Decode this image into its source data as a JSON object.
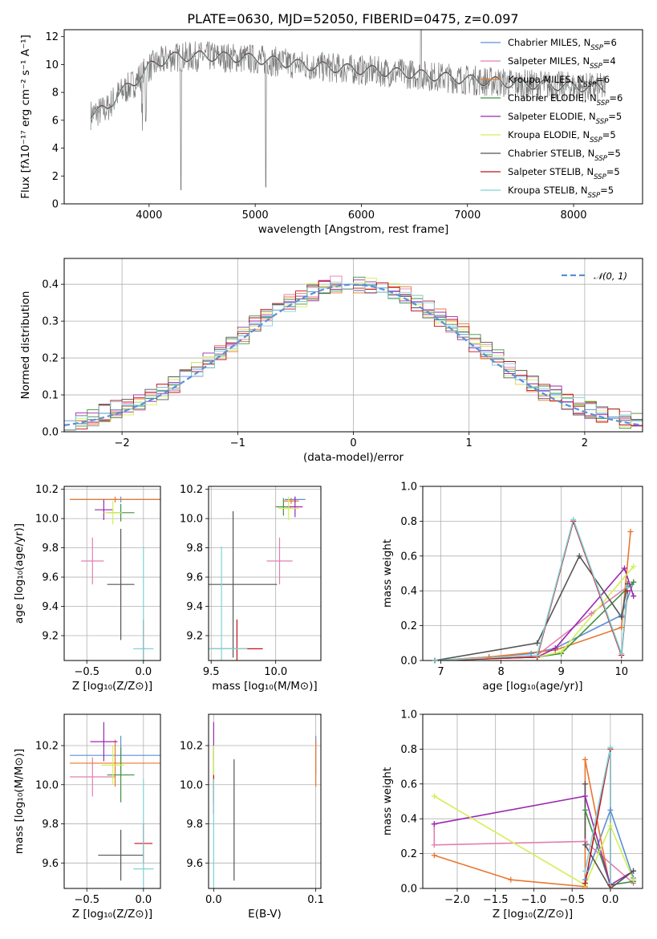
{
  "colors": {
    "Chabrier MILES": "#5b8fd6",
    "Salpeter MILES": "#e27fb0",
    "Kroupa MILES": "#e8772e",
    "Chabrier ELODIE": "#3e9240",
    "Salpeter ELODIE": "#9b27ae",
    "Kroupa ELODIE": "#d4ef55",
    "Chabrier STELIB": "#555555",
    "Salpeter STELIB": "#c0111d",
    "Kroupa STELIB": "#7fd3d8"
  },
  "chart_data": [
    {
      "id": "spectrum",
      "type": "line",
      "title": "PLATE=0630, MJD=52050, FIBERID=0475, z=0.097",
      "xlabel": "wavelength [Angstrom, rest frame]",
      "ylabel": "Flux [fλ10⁻¹⁷ erg cm⁻² s⁻¹ A⁻¹]",
      "xlim": [
        3200,
        8650
      ],
      "ylim": [
        0,
        12.5
      ],
      "xticks": [
        "4000",
        "5000",
        "6000",
        "7000",
        "8000"
      ],
      "yticks": [
        "0",
        "2",
        "4",
        "6",
        "8",
        "10",
        "12"
      ],
      "legend_position": "top-right",
      "legend": [
        {
          "base": "Chabrier MILES, N",
          "sub": "SSP",
          "tail": "=6"
        },
        {
          "base": "Salpeter MILES, N",
          "sub": "SSP",
          "tail": "=4"
        },
        {
          "base": "Kroupa MILES, N",
          "sub": "SSP",
          "tail": "=6"
        },
        {
          "base": "Chabrier ELODIE, N",
          "sub": "SSP",
          "tail": "=6"
        },
        {
          "base": "Salpeter ELODIE, N",
          "sub": "SSP",
          "tail": "=5"
        },
        {
          "base": "Kroupa ELODIE, N",
          "sub": "SSP",
          "tail": "=5"
        },
        {
          "base": "Chabrier STELIB, N",
          "sub": "SSP",
          "tail": "=5"
        },
        {
          "base": "Salpeter STELIB, N",
          "sub": "SSP",
          "tail": "=5"
        },
        {
          "base": "Kroupa STELIB, N",
          "sub": "SSP",
          "tail": "=5"
        }
      ],
      "continuum": [
        [
          3450,
          6.4
        ],
        [
          3600,
          6.8
        ],
        [
          3700,
          7.8
        ],
        [
          3850,
          8.6
        ],
        [
          4000,
          9.8
        ],
        [
          4200,
          10.5
        ],
        [
          4500,
          10.6
        ],
        [
          5000,
          10.4
        ],
        [
          5500,
          9.9
        ],
        [
          6000,
          9.6
        ],
        [
          6500,
          9.3
        ],
        [
          7000,
          8.9
        ],
        [
          7500,
          8.6
        ],
        [
          8000,
          8.4
        ],
        [
          8300,
          8.3
        ]
      ]
    },
    {
      "id": "residuals",
      "type": "histogram",
      "xlabel": "(data-model)/error",
      "ylabel": "Normed distribution",
      "xlim": [
        -2.5,
        2.5
      ],
      "ylim": [
        0,
        0.47
      ],
      "xticks": [
        "−2",
        "−1",
        "0",
        "1",
        "2"
      ],
      "yticks": [
        "0.0",
        "0.1",
        "0.2",
        "0.3",
        "0.4"
      ],
      "bins": 50,
      "legend": "𝒩(0, 1)",
      "series": [
        {
          "name": "Chabrier MILES",
          "values": [
            0.03,
            0.03,
            0.04,
            0.05,
            0.06,
            0.07,
            0.08,
            0.09,
            0.11,
            0.13,
            0.15,
            0.17,
            0.19,
            0.21,
            0.24,
            0.26,
            0.29,
            0.31,
            0.33,
            0.35,
            0.36,
            0.38,
            0.39,
            0.4,
            0.4,
            0.4,
            0.4,
            0.39,
            0.38,
            0.37,
            0.35,
            0.33,
            0.31,
            0.29,
            0.27,
            0.24,
            0.22,
            0.2,
            0.17,
            0.15,
            0.13,
            0.11,
            0.1,
            0.08,
            0.07,
            0.06,
            0.05,
            0.04,
            0.03,
            0.03
          ]
        }
      ]
    },
    {
      "id": "age-vs-Z",
      "type": "errorbar",
      "xlabel": "Z [log₁₀(Z/Z⊙)]",
      "ylabel": "age  [log₁₀(age/yr)]",
      "xlim": [
        -0.7,
        0.15
      ],
      "ylim": [
        9.03,
        10.22
      ],
      "xticks": [
        "−0.5",
        "0.0"
      ],
      "yticks": [
        "9.2",
        "9.4",
        "9.6",
        "9.8",
        "10.0",
        "10.2"
      ],
      "points": [
        {
          "model": "Chabrier MILES",
          "x": -0.2,
          "xerr": 0.45,
          "y": 10.13,
          "yerr": 0.02
        },
        {
          "model": "Salpeter MILES",
          "x": -0.45,
          "xerr": 0.1,
          "y": 9.71,
          "yerr": 0.16
        },
        {
          "model": "Kroupa MILES",
          "x": -0.25,
          "xerr": 0.4,
          "y": 10.13,
          "yerr": 0.02
        },
        {
          "model": "Chabrier ELODIE",
          "x": -0.2,
          "xerr": 0.12,
          "y": 10.04,
          "yerr": 0.06
        },
        {
          "model": "Salpeter ELODIE",
          "x": -0.35,
          "xerr": 0.08,
          "y": 10.06,
          "yerr": 0.07
        },
        {
          "model": "Kroupa ELODIE",
          "x": -0.27,
          "xerr": 0.08,
          "y": 10.04,
          "yerr": 0.08
        },
        {
          "model": "Chabrier STELIB",
          "x": -0.2,
          "xerr": 0.12,
          "y": 9.55,
          "yerr": 0.38
        },
        {
          "model": "Salpeter STELIB",
          "x": 0.0,
          "xerr": 0.02,
          "y": 9.11,
          "yerr": 0.2
        },
        {
          "model": "Kroupa STELIB",
          "x": 0.0,
          "xerr": 0.09,
          "y": 9.11,
          "yerr": 0.7
        }
      ]
    },
    {
      "id": "age-vs-mass",
      "type": "errorbar",
      "xlabel": "mass [log₁₀(M/M⊙)]",
      "ylabel": "",
      "xlim": [
        9.48,
        10.35
      ],
      "ylim": [
        9.03,
        10.22
      ],
      "xticks": [
        "9.5",
        "10.0"
      ],
      "yticks": [
        "9.2",
        "9.4",
        "9.6",
        "9.8",
        "10.0",
        "10.2"
      ],
      "points": [
        {
          "model": "Chabrier MILES",
          "x": 10.15,
          "xerr": 0.08,
          "y": 10.13,
          "yerr": 0.02
        },
        {
          "model": "Salpeter MILES",
          "x": 10.03,
          "xerr": 0.1,
          "y": 9.71,
          "yerr": 0.16
        },
        {
          "model": "Kroupa MILES",
          "x": 10.12,
          "xerr": 0.06,
          "y": 10.12,
          "yerr": 0.02
        },
        {
          "model": "Chabrier ELODIE",
          "x": 10.06,
          "xerr": 0.06,
          "y": 10.08,
          "yerr": 0.06
        },
        {
          "model": "Salpeter ELODIE",
          "x": 10.15,
          "xerr": 0.06,
          "y": 10.08,
          "yerr": 0.07
        },
        {
          "model": "Kroupa ELODIE",
          "x": 10.1,
          "xerr": 0.08,
          "y": 10.07,
          "yerr": 0.08
        },
        {
          "model": "Chabrier STELIB",
          "x": 9.67,
          "xerr": 0.34,
          "y": 9.55,
          "yerr": 0.5
        },
        {
          "model": "Salpeter STELIB",
          "x": 9.7,
          "xerr": 0.2,
          "y": 9.11,
          "yerr": 0.2
        },
        {
          "model": "Kroupa STELIB",
          "x": 9.58,
          "xerr": 0.2,
          "y": 9.11,
          "yerr": 0.7
        }
      ]
    },
    {
      "id": "weight-vs-age",
      "type": "line",
      "xlabel": "age  [log₁₀(age/yr)]",
      "ylabel": "mass weight",
      "xlim": [
        6.7,
        10.35
      ],
      "ylim": [
        0,
        1.0
      ],
      "xticks": [
        "7",
        "8",
        "9",
        "10"
      ],
      "yticks": [
        "0.0",
        "0.2",
        "0.4",
        "0.6",
        "0.8",
        "1.0"
      ],
      "series": [
        {
          "name": "Chabrier MILES",
          "x": [
            6.9,
            7.8,
            8.5,
            8.9,
            10.0,
            10.2
          ],
          "y": [
            0.0,
            0.02,
            0.04,
            0.07,
            0.26,
            0.45
          ]
        },
        {
          "name": "Salpeter MILES",
          "x": [
            6.9,
            8.6,
            9.5,
            10.2
          ],
          "y": [
            0.0,
            0.03,
            0.27,
            0.45
          ]
        },
        {
          "name": "Kroupa MILES",
          "x": [
            6.9,
            7.8,
            8.9,
            10.0,
            10.15
          ],
          "y": [
            0.0,
            0.02,
            0.06,
            0.19,
            0.74
          ]
        },
        {
          "name": "Chabrier ELODIE",
          "x": [
            6.9,
            8.6,
            9.0,
            10.2
          ],
          "y": [
            0.0,
            0.02,
            0.04,
            0.45
          ]
        },
        {
          "name": "Salpeter ELODIE",
          "x": [
            6.9,
            8.6,
            8.9,
            10.05,
            10.2
          ],
          "y": [
            0.0,
            0.02,
            0.07,
            0.53,
            0.37
          ]
        },
        {
          "name": "Kroupa ELODIE",
          "x": [
            6.9,
            8.6,
            9.0,
            10.2
          ],
          "y": [
            0.0,
            0.02,
            0.05,
            0.54
          ]
        },
        {
          "name": "Chabrier STELIB",
          "x": [
            6.9,
            8.6,
            9.3,
            10.0,
            10.1
          ],
          "y": [
            0.0,
            0.1,
            0.6,
            0.25,
            0.44
          ]
        },
        {
          "name": "Salpeter STELIB",
          "x": [
            6.9,
            8.6,
            9.2,
            10.0,
            10.1
          ],
          "y": [
            0.0,
            0.02,
            0.8,
            0.03,
            0.4
          ]
        },
        {
          "name": "Kroupa STELIB",
          "x": [
            6.9,
            8.6,
            9.2,
            10.0,
            10.1
          ],
          "y": [
            0.0,
            0.03,
            0.81,
            0.04,
            0.42
          ]
        }
      ]
    },
    {
      "id": "mass-vs-Z",
      "type": "errorbar",
      "xlabel": "Z [log₁₀(Z/Z⊙)]",
      "ylabel": "mass [log₁₀(M/M⊙)]",
      "xlim": [
        -0.7,
        0.15
      ],
      "ylim": [
        9.47,
        10.36
      ],
      "xticks": [
        "−0.5",
        "0.0"
      ],
      "yticks": [
        "9.6",
        "9.8",
        "10.0",
        "10.2"
      ],
      "points": [
        {
          "model": "Chabrier MILES",
          "x": -0.2,
          "xerr": 0.45,
          "y": 10.15,
          "yerr": 0.1
        },
        {
          "model": "Salpeter MILES",
          "x": -0.45,
          "xerr": 0.2,
          "y": 10.04,
          "yerr": 0.1
        },
        {
          "model": "Kroupa MILES",
          "x": -0.25,
          "xerr": 0.4,
          "y": 10.11,
          "yerr": 0.12
        },
        {
          "model": "Chabrier ELODIE",
          "x": -0.2,
          "xerr": 0.12,
          "y": 10.05,
          "yerr": 0.14
        },
        {
          "model": "Salpeter ELODIE",
          "x": -0.35,
          "xerr": 0.12,
          "y": 10.22,
          "yerr": 0.1
        },
        {
          "model": "Kroupa ELODIE",
          "x": -0.27,
          "xerr": 0.1,
          "y": 10.1,
          "yerr": 0.1
        },
        {
          "model": "Chabrier STELIB",
          "x": -0.2,
          "xerr": 0.2,
          "y": 9.64,
          "yerr": 0.13
        },
        {
          "model": "Salpeter STELIB",
          "x": 0.0,
          "xerr": 0.08,
          "y": 9.7,
          "yerr": 0.1
        },
        {
          "model": "Kroupa STELIB",
          "x": 0.0,
          "xerr": 0.09,
          "y": 9.57,
          "yerr": 0.46
        }
      ]
    },
    {
      "id": "mass-vs-ebv",
      "type": "errorbar",
      "xlabel": "E(B-V)",
      "ylabel": "",
      "xlim": [
        -0.005,
        0.105
      ],
      "ylim": [
        9.47,
        10.36
      ],
      "xticks": [
        "0.0",
        "0.1"
      ],
      "yticks": [
        "9.6",
        "9.8",
        "10.0",
        "10.2"
      ],
      "points": [
        {
          "model": "Chabrier MILES",
          "x": 0.1,
          "xerr": 0,
          "y": 10.15,
          "yerr": 0.1
        },
        {
          "model": "Salpeter MILES",
          "x": 0.0,
          "xerr": 0,
          "y": 10.04,
          "yerr": 0.1
        },
        {
          "model": "Kroupa MILES",
          "x": 0.1,
          "xerr": 0,
          "y": 10.11,
          "yerr": 0.12
        },
        {
          "model": "Chabrier ELODIE",
          "x": 0.0,
          "xerr": 0,
          "y": 10.05,
          "yerr": 0.14
        },
        {
          "model": "Salpeter ELODIE",
          "x": 0.0,
          "xerr": 0,
          "y": 10.22,
          "yerr": 0.1
        },
        {
          "model": "Kroupa ELODIE",
          "x": 0.0,
          "xerr": 0,
          "y": 10.1,
          "yerr": 0.1
        },
        {
          "model": "Chabrier STELIB",
          "x": 0.02,
          "xerr": 0,
          "y": 9.82,
          "yerr": 0.31
        },
        {
          "model": "Salpeter STELIB",
          "x": 0.0,
          "xerr": 0,
          "y": 9.95,
          "yerr": 0.1
        },
        {
          "model": "Kroupa STELIB",
          "x": 0.0,
          "xerr": 0,
          "y": 9.57,
          "yerr": 0.46
        }
      ]
    },
    {
      "id": "weight-vs-Z",
      "type": "line",
      "xlabel": "Z [log₁₀(Z/Z⊙)]",
      "ylabel": "mass weight",
      "xlim": [
        -2.45,
        0.42
      ],
      "ylim": [
        0,
        1.0
      ],
      "xticks": [
        "−2.0",
        "−1.5",
        "−1.0",
        "−0.5",
        "0.0"
      ],
      "yticks": [
        "0.0",
        "0.2",
        "0.4",
        "0.6",
        "0.8",
        "1.0"
      ],
      "series": [
        {
          "name": "Chabrier MILES",
          "x": [
            -0.33,
            0.0,
            0.3
          ],
          "y": [
            0.05,
            0.45,
            0.06
          ]
        },
        {
          "name": "Salpeter MILES",
          "x": [
            -2.3,
            -2.3,
            -0.33,
            0.3
          ],
          "y": [
            0.37,
            0.25,
            0.27,
            0.03
          ]
        },
        {
          "name": "Kroupa MILES",
          "x": [
            -2.3,
            -1.3,
            -0.33,
            -0.33,
            0.0
          ],
          "y": [
            0.19,
            0.05,
            0.01,
            0.74,
            0.0
          ]
        },
        {
          "name": "Chabrier ELODIE",
          "x": [
            -0.33,
            0.0,
            0.3
          ],
          "y": [
            0.45,
            0.02,
            0.04
          ]
        },
        {
          "name": "Salpeter ELODIE",
          "x": [
            -2.3,
            -0.33,
            0.0,
            0.3
          ],
          "y": [
            0.37,
            0.53,
            0.02,
            0.1
          ]
        },
        {
          "name": "Kroupa ELODIE",
          "x": [
            -2.3,
            -0.33,
            0.0,
            0.3
          ],
          "y": [
            0.53,
            0.02,
            0.36,
            0.05
          ]
        },
        {
          "name": "Chabrier STELIB",
          "x": [
            -0.33,
            -0.33,
            0.0,
            0.3
          ],
          "y": [
            0.6,
            0.25,
            0.0,
            0.1
          ]
        },
        {
          "name": "Salpeter STELIB",
          "x": [
            -0.33,
            0.0,
            0.0
          ],
          "y": [
            0.03,
            0.8,
            0.02
          ]
        },
        {
          "name": "Kroupa STELIB",
          "x": [
            -0.33,
            0.0,
            0.0
          ],
          "y": [
            0.1,
            0.81,
            0.03
          ]
        }
      ]
    }
  ]
}
